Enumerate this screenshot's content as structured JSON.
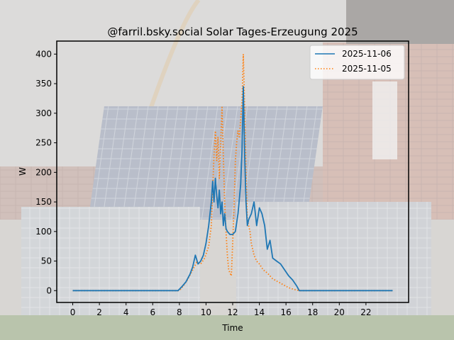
{
  "colors": {
    "series_1": "#1f77b4",
    "series_2": "#ff7f0e",
    "axes": "#000000"
  },
  "chart_data": {
    "type": "line",
    "title": "@farril.bsky.social Solar Tages-Erzeugung 2025",
    "xlabel": "Time",
    "ylabel": "W",
    "xlim": [
      -1.2,
      25.2
    ],
    "ylim": [
      -20,
      422
    ],
    "xticks": [
      0,
      2,
      4,
      6,
      8,
      10,
      12,
      14,
      16,
      18,
      20,
      22
    ],
    "yticks": [
      0,
      50,
      100,
      150,
      200,
      250,
      300,
      350,
      400
    ],
    "grid": false,
    "legend_position": "top-right",
    "series": [
      {
        "name": "2025-11-06",
        "style": "solid",
        "color": "#1f77b4",
        "x": [
          0,
          7.9,
          8.2,
          8.5,
          8.8,
          9.0,
          9.2,
          9.4,
          9.6,
          9.8,
          10.0,
          10.2,
          10.4,
          10.5,
          10.6,
          10.7,
          10.8,
          10.9,
          11.0,
          11.1,
          11.2,
          11.3,
          11.4,
          11.5,
          11.6,
          11.8,
          12.0,
          12.2,
          12.4,
          12.6,
          12.7,
          12.8,
          12.9,
          13.0,
          13.1,
          13.2,
          13.4,
          13.6,
          13.8,
          14.0,
          14.2,
          14.4,
          14.6,
          14.8,
          15.0,
          15.3,
          15.6,
          15.9,
          16.2,
          16.5,
          16.8,
          17.0,
          24
        ],
        "y": [
          0,
          0,
          7,
          15,
          28,
          40,
          60,
          45,
          50,
          60,
          80,
          110,
          150,
          185,
          150,
          190,
          160,
          140,
          170,
          130,
          150,
          110,
          130,
          105,
          100,
          95,
          95,
          100,
          130,
          180,
          240,
          345,
          230,
          150,
          110,
          120,
          130,
          150,
          110,
          140,
          130,
          110,
          70,
          85,
          55,
          50,
          45,
          35,
          25,
          18,
          8,
          0,
          0
        ]
      },
      {
        "name": "2025-11-05",
        "style": "dotted",
        "color": "#ff7f0e",
        "x": [
          0,
          8.0,
          8.3,
          8.6,
          9.0,
          9.3,
          9.6,
          9.9,
          10.2,
          10.4,
          10.5,
          10.6,
          10.7,
          10.8,
          10.9,
          11.0,
          11.1,
          11.2,
          11.3,
          11.4,
          11.5,
          11.6,
          11.7,
          11.8,
          11.9,
          12.0,
          12.1,
          12.2,
          12.3,
          12.4,
          12.5,
          12.6,
          12.7,
          12.8,
          12.9,
          13.0,
          13.1,
          13.2,
          13.3,
          13.4,
          13.6,
          13.8,
          14.0,
          14.3,
          14.6,
          15.0,
          15.4,
          15.8,
          16.2,
          16.6,
          17.0,
          24
        ],
        "y": [
          0,
          0,
          8,
          18,
          35,
          48,
          45,
          55,
          75,
          110,
          170,
          230,
          270,
          220,
          260,
          190,
          250,
          310,
          230,
          150,
          100,
          60,
          35,
          30,
          25,
          80,
          140,
          220,
          250,
          270,
          260,
          290,
          320,
          400,
          310,
          200,
          120,
          110,
          100,
          80,
          60,
          50,
          45,
          35,
          30,
          20,
          15,
          10,
          5,
          2,
          0,
          0
        ]
      }
    ]
  }
}
